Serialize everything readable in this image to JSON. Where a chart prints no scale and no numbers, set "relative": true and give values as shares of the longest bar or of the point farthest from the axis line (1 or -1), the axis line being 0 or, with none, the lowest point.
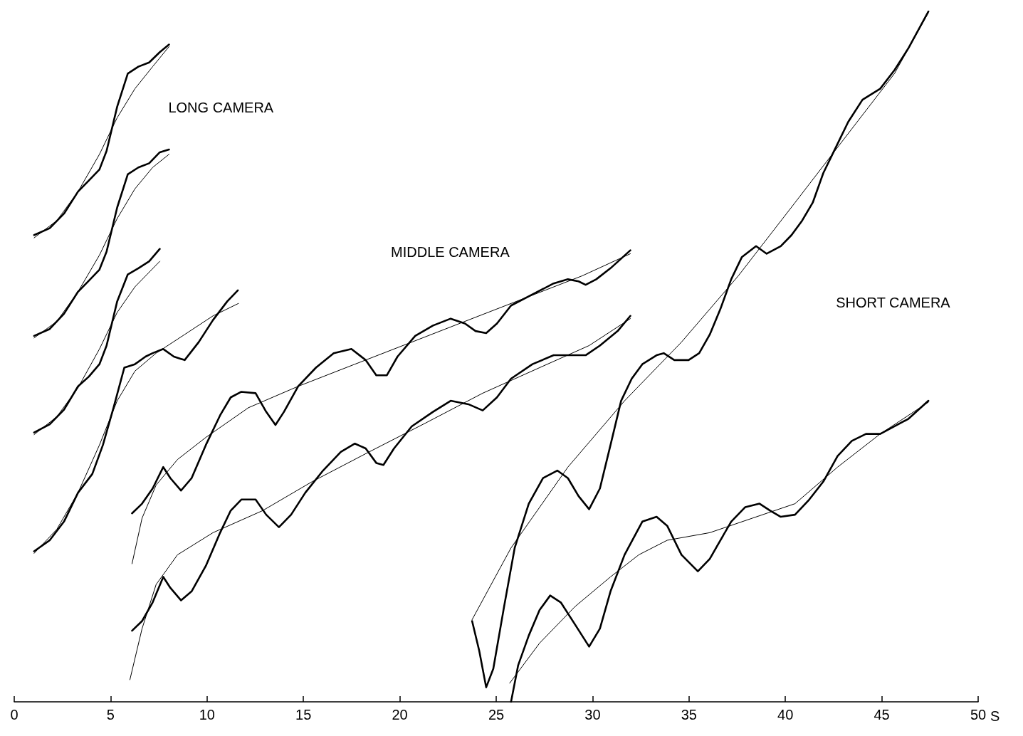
{
  "chart_data": {
    "type": "line",
    "relative": true,
    "xlabel": "S",
    "xlim": [
      0,
      50
    ],
    "xticks": [
      0,
      5,
      10,
      15,
      20,
      25,
      30,
      35,
      40,
      45,
      50
    ],
    "grid": false,
    "marker": "none",
    "line_style": "solid",
    "tick_labels": "x",
    "annotations": [
      "LONG CAMERA",
      "MIDDLE CAMERA",
      "SHORT CAMERA"
    ],
    "series": [
      {
        "color": "#000000",
        "x": [
          1.03,
          1.84,
          2.58,
          3.31,
          3.87,
          4.42,
          4.79,
          5.34,
          5.89,
          6.44,
          7.0,
          7.55,
          8.03
        ],
        "values": [
          0.676,
          0.686,
          0.707,
          0.739,
          0.755,
          0.771,
          0.798,
          0.862,
          0.91,
          0.92,
          0.926,
          0.941,
          0.952
        ]
      },
      {
        "color": "#000000",
        "x": [
          1.03,
          2.21,
          3.31,
          4.42,
          5.34,
          6.26,
          7.18,
          8.03
        ],
        "values": [
          0.672,
          0.697,
          0.739,
          0.793,
          0.846,
          0.888,
          0.92,
          0.949
        ]
      },
      {
        "color": "#000000",
        "x": [
          1.03,
          1.84,
          2.58,
          3.31,
          3.87,
          4.42,
          4.79,
          5.34,
          5.89,
          6.44,
          7.0,
          7.55,
          8.03
        ],
        "values": [
          0.53,
          0.54,
          0.562,
          0.594,
          0.61,
          0.626,
          0.652,
          0.716,
          0.764,
          0.774,
          0.78,
          0.796,
          0.8
        ]
      },
      {
        "color": "#000000",
        "x": [
          1.03,
          2.21,
          3.31,
          4.42,
          5.34,
          6.26,
          7.18,
          8.03
        ],
        "values": [
          0.527,
          0.551,
          0.594,
          0.647,
          0.7,
          0.743,
          0.774,
          0.793
        ]
      },
      {
        "color": "#000000",
        "x": [
          1.03,
          1.84,
          2.58,
          3.31,
          3.87,
          4.42,
          4.79,
          5.34,
          5.89,
          6.44,
          7.0,
          7.55
        ],
        "values": [
          0.39,
          0.402,
          0.423,
          0.457,
          0.471,
          0.489,
          0.516,
          0.58,
          0.619,
          0.628,
          0.638,
          0.656
        ]
      },
      {
        "color": "#000000",
        "x": [
          1.03,
          2.21,
          3.31,
          4.42,
          5.34,
          6.26,
          7.55
        ],
        "values": [
          0.387,
          0.413,
          0.455,
          0.511,
          0.564,
          0.601,
          0.638
        ]
      },
      {
        "color": "#000000",
        "x": [
          1.03,
          1.84,
          2.58,
          3.31,
          4.05,
          4.6,
          5.15,
          5.71,
          6.26,
          6.81,
          7.18,
          7.73,
          8.28,
          8.84,
          9.57,
          10.31,
          11.05,
          11.6
        ],
        "values": [
          0.218,
          0.234,
          0.261,
          0.303,
          0.33,
          0.372,
          0.426,
          0.484,
          0.489,
          0.5,
          0.505,
          0.511,
          0.5,
          0.495,
          0.521,
          0.553,
          0.58,
          0.596
        ]
      },
      {
        "color": "#000000",
        "x": [
          1.03,
          2.21,
          3.31,
          4.42,
          5.34,
          6.26,
          7.36,
          8.84,
          10.31,
          11.63
        ],
        "values": [
          0.215,
          0.25,
          0.303,
          0.372,
          0.436,
          0.479,
          0.505,
          0.532,
          0.559,
          0.577
        ]
      },
      {
        "color": "#000000",
        "x": [
          6.11,
          6.63,
          7.18,
          7.73,
          8.1,
          8.65,
          9.2,
          9.94,
          10.68,
          11.23,
          11.78,
          12.52,
          13.07,
          13.55,
          13.99,
          14.73,
          15.65,
          16.57,
          17.49,
          18.23,
          18.78,
          19.33,
          19.88,
          20.8,
          21.72,
          22.64,
          23.38,
          23.93,
          24.48,
          25.04,
          25.77,
          26.88,
          27.98,
          28.72,
          29.27,
          29.64,
          30.19,
          30.93,
          31.96
        ],
        "values": [
          0.273,
          0.287,
          0.309,
          0.34,
          0.324,
          0.306,
          0.324,
          0.372,
          0.415,
          0.441,
          0.449,
          0.447,
          0.42,
          0.401,
          0.42,
          0.457,
          0.484,
          0.505,
          0.511,
          0.495,
          0.473,
          0.473,
          0.5,
          0.53,
          0.545,
          0.555,
          0.548,
          0.537,
          0.534,
          0.548,
          0.574,
          0.59,
          0.606,
          0.612,
          0.609,
          0.604,
          0.612,
          0.628,
          0.654
        ]
      },
      {
        "color": "#000000",
        "x": [
          6.11,
          6.63,
          7.36,
          8.47,
          9.94,
          12.15,
          14.73,
          17.67,
          20.62,
          23.56,
          26.51,
          29.46,
          31.96
        ],
        "values": [
          0.2,
          0.266,
          0.314,
          0.351,
          0.383,
          0.426,
          0.457,
          0.489,
          0.521,
          0.553,
          0.585,
          0.617,
          0.649
        ]
      },
      {
        "color": "#000000",
        "x": [
          6.11,
          6.63,
          7.18,
          7.73,
          8.1,
          8.65,
          9.2,
          9.94,
          10.68,
          11.23,
          11.78,
          12.52,
          13.07,
          13.73,
          14.36,
          15.1,
          16.02,
          16.94,
          17.67,
          18.23,
          18.78,
          19.15,
          19.7,
          20.62,
          21.72,
          22.64,
          23.56,
          24.3,
          25.04,
          25.77,
          26.88,
          27.98,
          28.72,
          29.64,
          30.38,
          31.3,
          31.96
        ],
        "values": [
          0.103,
          0.117,
          0.144,
          0.181,
          0.165,
          0.147,
          0.16,
          0.197,
          0.245,
          0.277,
          0.293,
          0.293,
          0.271,
          0.253,
          0.271,
          0.303,
          0.335,
          0.362,
          0.374,
          0.367,
          0.346,
          0.343,
          0.367,
          0.399,
          0.42,
          0.436,
          0.431,
          0.422,
          0.441,
          0.468,
          0.489,
          0.502,
          0.502,
          0.502,
          0.516,
          0.537,
          0.559
        ]
      },
      {
        "color": "#000000",
        "x": [
          6.0,
          6.63,
          7.36,
          8.47,
          10.31,
          12.89,
          15.46,
          18.41,
          21.35,
          24.3,
          27.25,
          29.82,
          31.96
        ],
        "values": [
          0.032,
          0.106,
          0.17,
          0.213,
          0.245,
          0.277,
          0.319,
          0.362,
          0.404,
          0.447,
          0.484,
          0.516,
          0.555
        ]
      },
      {
        "color": "#000000",
        "x": [
          23.75,
          24.12,
          24.48,
          24.85,
          25.41,
          25.96,
          26.69,
          27.43,
          28.17,
          28.72,
          29.27,
          29.82,
          30.38,
          30.93,
          31.48,
          32.03,
          32.58,
          33.32,
          33.69,
          34.24,
          34.98,
          35.53,
          36.08,
          36.63,
          37.19,
          37.74,
          38.48,
          39.03,
          39.76,
          40.32,
          40.87,
          41.42,
          41.97,
          42.53,
          43.26,
          44.0,
          44.92,
          45.66,
          46.39,
          47.42
        ],
        "values": [
          0.117,
          0.074,
          0.021,
          0.048,
          0.138,
          0.223,
          0.287,
          0.324,
          0.335,
          0.324,
          0.298,
          0.279,
          0.309,
          0.372,
          0.436,
          0.468,
          0.489,
          0.502,
          0.505,
          0.495,
          0.495,
          0.505,
          0.532,
          0.569,
          0.612,
          0.644,
          0.66,
          0.649,
          0.66,
          0.676,
          0.697,
          0.723,
          0.766,
          0.798,
          0.84,
          0.872,
          0.888,
          0.915,
          0.947,
          1.0
        ]
      },
      {
        "color": "#000000",
        "x": [
          23.75,
          25.77,
          28.72,
          31.66,
          34.61,
          37.56,
          40.5,
          43.45,
          45.66,
          47.42
        ],
        "values": [
          0.119,
          0.223,
          0.34,
          0.436,
          0.521,
          0.617,
          0.723,
          0.83,
          0.91,
          0.998
        ]
      },
      {
        "color": "#000000",
        "x": [
          25.77,
          26.14,
          26.69,
          27.25,
          27.8,
          28.35,
          29.09,
          29.82,
          30.38,
          30.93,
          31.66,
          32.58,
          33.32,
          33.87,
          34.61,
          35.46,
          36.08,
          36.63,
          37.19,
          37.92,
          38.66,
          39.21,
          39.76,
          40.5,
          41.24,
          41.97,
          42.71,
          43.45,
          44.18,
          44.92,
          45.66,
          46.39,
          47.42
        ],
        "values": [
          0,
          0.053,
          0.096,
          0.133,
          0.154,
          0.144,
          0.112,
          0.08,
          0.106,
          0.16,
          0.213,
          0.261,
          0.268,
          0.255,
          0.213,
          0.189,
          0.207,
          0.234,
          0.261,
          0.282,
          0.287,
          0.277,
          0.268,
          0.271,
          0.293,
          0.319,
          0.356,
          0.378,
          0.388,
          0.388,
          0.399,
          0.41,
          0.436
        ]
      },
      {
        "color": "#000000",
        "x": [
          25.7,
          27.25,
          29.09,
          30.93,
          32.4,
          33.87,
          36.08,
          38.29,
          40.5,
          42.71,
          44.92,
          47.42
        ],
        "values": [
          0.027,
          0.085,
          0.138,
          0.181,
          0.213,
          0.234,
          0.245,
          0.266,
          0.287,
          0.34,
          0.388,
          0.434
        ]
      }
    ]
  }
}
